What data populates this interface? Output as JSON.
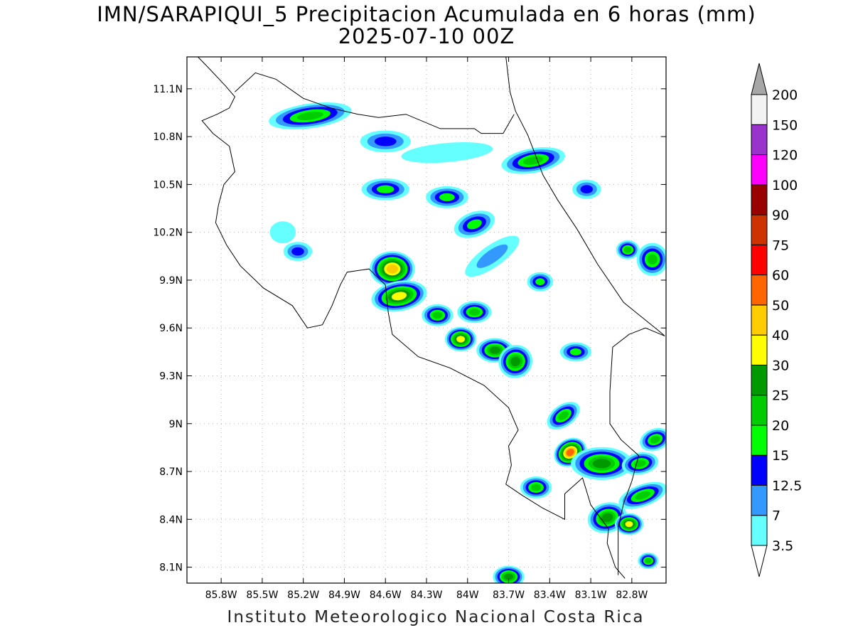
{
  "title": {
    "line1": "IMN/SARAPIQUI_5 Precipitacion Acumulada en 6 horas (mm)",
    "line2": "2025-07-10 00Z"
  },
  "credit": "Instituto Meteorologico Nacional Costa Rica",
  "map": {
    "lon_range": [
      -86.05,
      -82.55
    ],
    "lat_range": [
      8.0,
      11.3
    ],
    "grid": true,
    "lat_ticks": [
      {
        "value": 8.1,
        "label": "8.1N"
      },
      {
        "value": 8.4,
        "label": "8.4N"
      },
      {
        "value": 8.7,
        "label": "8.7N"
      },
      {
        "value": 9.0,
        "label": "9N"
      },
      {
        "value": 9.3,
        "label": "9.3N"
      },
      {
        "value": 9.6,
        "label": "9.6N"
      },
      {
        "value": 9.9,
        "label": "9.9N"
      },
      {
        "value": 10.2,
        "label": "10.2N"
      },
      {
        "value": 10.5,
        "label": "10.5N"
      },
      {
        "value": 10.8,
        "label": "10.8N"
      },
      {
        "value": 11.1,
        "label": "11.1N"
      }
    ],
    "lon_ticks": [
      {
        "value": -85.8,
        "label": "85.8W"
      },
      {
        "value": -85.5,
        "label": "85.5W"
      },
      {
        "value": -85.2,
        "label": "85.2W"
      },
      {
        "value": -84.9,
        "label": "84.9W"
      },
      {
        "value": -84.6,
        "label": "84.6W"
      },
      {
        "value": -84.3,
        "label": "84.3W"
      },
      {
        "value": -84.0,
        "label": "84W"
      },
      {
        "value": -83.7,
        "label": "83.7W"
      },
      {
        "value": -83.4,
        "label": "83.4W"
      },
      {
        "value": -83.1,
        "label": "83.1W"
      },
      {
        "value": -82.8,
        "label": "82.8W"
      }
    ],
    "coastlines": [
      [
        [
          -85.97,
          11.3
        ],
        [
          -85.88,
          11.22
        ],
        [
          -85.77,
          11.12
        ],
        [
          -85.7,
          11.05
        ],
        [
          -85.74,
          10.98
        ],
        [
          -85.83,
          10.94
        ],
        [
          -85.94,
          10.9
        ],
        [
          -85.86,
          10.82
        ],
        [
          -85.74,
          10.74
        ],
        [
          -85.7,
          10.58
        ],
        [
          -85.78,
          10.5
        ],
        [
          -85.82,
          10.37
        ],
        [
          -85.84,
          10.26
        ],
        [
          -85.76,
          10.12
        ],
        [
          -85.66,
          9.99
        ],
        [
          -85.49,
          9.85
        ],
        [
          -85.28,
          9.74
        ],
        [
          -85.17,
          9.6
        ],
        [
          -85.06,
          9.62
        ],
        [
          -84.99,
          9.74
        ],
        [
          -84.93,
          9.87
        ],
        [
          -84.88,
          9.95
        ],
        [
          -84.72,
          9.97
        ],
        [
          -84.6,
          9.87
        ],
        [
          -84.58,
          9.7
        ],
        [
          -84.55,
          9.56
        ],
        [
          -84.36,
          9.42
        ],
        [
          -84.13,
          9.35
        ],
        [
          -83.88,
          9.24
        ],
        [
          -83.7,
          9.1
        ],
        [
          -83.63,
          8.96
        ],
        [
          -83.7,
          8.86
        ],
        [
          -83.68,
          8.74
        ],
        [
          -83.72,
          8.62
        ],
        [
          -83.6,
          8.55
        ],
        [
          -83.45,
          8.47
        ],
        [
          -83.29,
          8.4
        ],
        [
          -83.29,
          8.56
        ],
        [
          -83.16,
          8.66
        ],
        [
          -83.1,
          8.49
        ],
        [
          -82.97,
          8.34
        ],
        [
          -82.98,
          8.25
        ],
        [
          -82.92,
          8.1
        ],
        [
          -82.85,
          8.03
        ]
      ],
      [
        [
          -83.72,
          11.3
        ],
        [
          -83.69,
          11.08
        ],
        [
          -83.65,
          10.96
        ],
        [
          -83.56,
          10.81
        ],
        [
          -83.52,
          10.72
        ],
        [
          -83.45,
          10.56
        ],
        [
          -83.34,
          10.4
        ],
        [
          -83.2,
          10.22
        ],
        [
          -83.05,
          10.0
        ],
        [
          -82.86,
          9.76
        ],
        [
          -82.6,
          9.58
        ],
        [
          -82.56,
          9.55
        ]
      ]
    ],
    "borders": [
      [
        [
          -85.7,
          11.08
        ],
        [
          -85.55,
          11.2
        ],
        [
          -85.4,
          11.16
        ],
        [
          -85.2,
          11.04
        ],
        [
          -85.0,
          10.98
        ],
        [
          -84.8,
          10.94
        ],
        [
          -84.65,
          10.92
        ],
        [
          -84.45,
          10.94
        ],
        [
          -84.2,
          10.85
        ],
        [
          -83.95,
          10.85
        ],
        [
          -83.9,
          10.82
        ],
        [
          -83.74,
          10.82
        ],
        [
          -83.66,
          10.94
        ]
      ],
      [
        [
          -82.56,
          9.55
        ],
        [
          -82.7,
          9.6
        ],
        [
          -82.82,
          9.56
        ],
        [
          -82.94,
          9.48
        ],
        [
          -82.96,
          9.2
        ],
        [
          -82.96,
          9.0
        ],
        [
          -82.88,
          8.9
        ],
        [
          -82.75,
          8.8
        ],
        [
          -82.8,
          8.64
        ],
        [
          -82.86,
          8.5
        ],
        [
          -82.9,
          8.35
        ],
        [
          -82.9,
          8.05
        ]
      ]
    ]
  },
  "precip_blobs": [
    {
      "lon": -85.15,
      "lat": 10.93,
      "rx": 0.27,
      "ry": 0.06,
      "rot": -8,
      "level": 5
    },
    {
      "lon": -84.6,
      "lat": 10.77,
      "rx": 0.15,
      "ry": 0.05,
      "rot": 0,
      "level": 3
    },
    {
      "lon": -84.15,
      "lat": 10.7,
      "rx": 0.3,
      "ry": 0.04,
      "rot": -5,
      "level": 1
    },
    {
      "lon": -83.52,
      "lat": 10.65,
      "rx": 0.2,
      "ry": 0.06,
      "rot": -10,
      "level": 5
    },
    {
      "lon": -84.6,
      "lat": 10.47,
      "rx": 0.14,
      "ry": 0.05,
      "rot": 0,
      "level": 4
    },
    {
      "lon": -84.15,
      "lat": 10.42,
      "rx": 0.12,
      "ry": 0.05,
      "rot": 0,
      "level": 4
    },
    {
      "lon": -83.95,
      "lat": 10.25,
      "rx": 0.12,
      "ry": 0.06,
      "rot": -20,
      "level": 4
    },
    {
      "lon": -83.82,
      "lat": 10.05,
      "rx": 0.2,
      "ry": 0.05,
      "rot": -35,
      "level": 2
    },
    {
      "lon": -85.35,
      "lat": 10.2,
      "rx": 0.06,
      "ry": 0.05,
      "rot": 0,
      "level": 1
    },
    {
      "lon": -85.24,
      "lat": 10.08,
      "rx": 0.07,
      "ry": 0.04,
      "rot": 0,
      "level": 3
    },
    {
      "lon": -84.55,
      "lat": 9.97,
      "rx": 0.13,
      "ry": 0.1,
      "rot": 0,
      "level": 8
    },
    {
      "lon": -84.5,
      "lat": 9.8,
      "rx": 0.17,
      "ry": 0.08,
      "rot": -10,
      "level": 7
    },
    {
      "lon": -84.22,
      "lat": 9.68,
      "rx": 0.08,
      "ry": 0.05,
      "rot": 0,
      "level": 5
    },
    {
      "lon": -83.95,
      "lat": 9.7,
      "rx": 0.09,
      "ry": 0.05,
      "rot": 0,
      "level": 5
    },
    {
      "lon": -84.05,
      "lat": 9.53,
      "rx": 0.08,
      "ry": 0.06,
      "rot": 0,
      "level": 7
    },
    {
      "lon": -83.8,
      "lat": 9.46,
      "rx": 0.1,
      "ry": 0.06,
      "rot": 0,
      "level": 6
    },
    {
      "lon": -83.65,
      "lat": 9.39,
      "rx": 0.09,
      "ry": 0.09,
      "rot": -30,
      "level": 6
    },
    {
      "lon": -83.47,
      "lat": 9.89,
      "rx": 0.06,
      "ry": 0.04,
      "rot": 0,
      "level": 4
    },
    {
      "lon": -83.21,
      "lat": 9.45,
      "rx": 0.08,
      "ry": 0.04,
      "rot": 0,
      "level": 4
    },
    {
      "lon": -83.3,
      "lat": 9.05,
      "rx": 0.1,
      "ry": 0.05,
      "rot": -35,
      "level": 5
    },
    {
      "lon": -83.25,
      "lat": 8.82,
      "rx": 0.09,
      "ry": 0.07,
      "rot": -30,
      "level": 9
    },
    {
      "lon": -83.02,
      "lat": 8.75,
      "rx": 0.19,
      "ry": 0.09,
      "rot": 0,
      "level": 6
    },
    {
      "lon": -83.5,
      "lat": 8.6,
      "rx": 0.08,
      "ry": 0.05,
      "rot": 0,
      "level": 5
    },
    {
      "lon": -82.98,
      "lat": 8.41,
      "rx": 0.11,
      "ry": 0.08,
      "rot": -15,
      "level": 6
    },
    {
      "lon": -82.82,
      "lat": 8.37,
      "rx": 0.07,
      "ry": 0.05,
      "rot": 0,
      "level": 7
    },
    {
      "lon": -82.72,
      "lat": 8.55,
      "rx": 0.15,
      "ry": 0.05,
      "rot": -20,
      "level": 5
    },
    {
      "lon": -82.74,
      "lat": 8.75,
      "rx": 0.1,
      "ry": 0.05,
      "rot": -10,
      "level": 5
    },
    {
      "lon": -82.63,
      "lat": 8.9,
      "rx": 0.08,
      "ry": 0.05,
      "rot": -20,
      "level": 5
    },
    {
      "lon": -82.65,
      "lat": 10.03,
      "rx": 0.08,
      "ry": 0.09,
      "rot": 0,
      "level": 5
    },
    {
      "lon": -82.83,
      "lat": 10.09,
      "rx": 0.05,
      "ry": 0.04,
      "rot": 0,
      "level": 5
    },
    {
      "lon": -83.13,
      "lat": 10.47,
      "rx": 0.07,
      "ry": 0.04,
      "rot": 0,
      "level": 3
    },
    {
      "lon": -83.7,
      "lat": 8.04,
      "rx": 0.08,
      "ry": 0.05,
      "rot": 0,
      "level": 6
    },
    {
      "lon": -82.68,
      "lat": 8.14,
      "rx": 0.04,
      "ry": 0.03,
      "rot": 0,
      "level": 5
    }
  ],
  "colorbar": {
    "colors": [
      "#66ffff",
      "#3399ff",
      "#0000ff",
      "#00ff00",
      "#00cc00",
      "#009900",
      "#ffff00",
      "#ffcc00",
      "#ff6600",
      "#ff0000",
      "#cc3300",
      "#990000",
      "#ff00ff",
      "#9933cc",
      "#f2f2f2",
      "#a6a6a6"
    ],
    "labels": [
      "3.5",
      "7",
      "12.5",
      "15",
      "20",
      "25",
      "30",
      "40",
      "50",
      "60",
      "75",
      "90",
      "100",
      "120",
      "150",
      "200"
    ]
  }
}
